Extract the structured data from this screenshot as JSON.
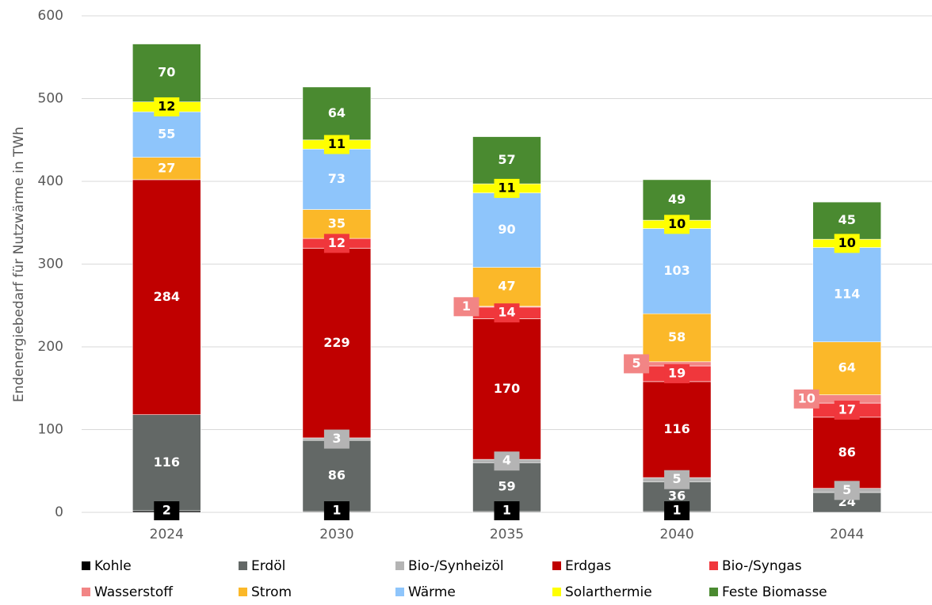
{
  "chart_data": {
    "type": "bar",
    "stacked": true,
    "y_label": "Endenergiebedarf für Nutzwärme in TWh",
    "categories": [
      "2024",
      "2030",
      "2035",
      "2040",
      "2044"
    ],
    "series": [
      {
        "name": "Kohle",
        "color": "#000000",
        "values": [
          2,
          1,
          1,
          1,
          0
        ]
      },
      {
        "name": "Erdöl",
        "color": "#636866",
        "values": [
          116,
          86,
          59,
          36,
          24
        ]
      },
      {
        "name": "Bio-/Synheizöl",
        "color": "#b4b4b4",
        "values": [
          0,
          3,
          4,
          5,
          5
        ]
      },
      {
        "name": "Erdgas",
        "color": "#c00000",
        "values": [
          284,
          229,
          170,
          116,
          86
        ]
      },
      {
        "name": "Bio-/Syngas",
        "color": "#f0373c",
        "values": [
          0,
          12,
          14,
          19,
          17
        ]
      },
      {
        "name": "Wasserstoff",
        "color": "#f28585",
        "values": [
          0,
          0,
          1,
          5,
          10
        ]
      },
      {
        "name": "Strom",
        "color": "#fbb829",
        "values": [
          27,
          35,
          47,
          58,
          64
        ]
      },
      {
        "name": "Wärme",
        "color": "#8ec5fb",
        "values": [
          55,
          73,
          90,
          103,
          114
        ]
      },
      {
        "name": "Solarthermie",
        "color": "#ffff00",
        "values": [
          12,
          11,
          11,
          10,
          10
        ]
      },
      {
        "name": "Feste Biomasse",
        "color": "#4a8a30",
        "values": [
          70,
          64,
          57,
          49,
          45
        ]
      }
    ],
    "ylim": [
      0,
      600
    ],
    "yticks": [
      0,
      100,
      200,
      300,
      400,
      500,
      600
    ],
    "grid": true
  }
}
